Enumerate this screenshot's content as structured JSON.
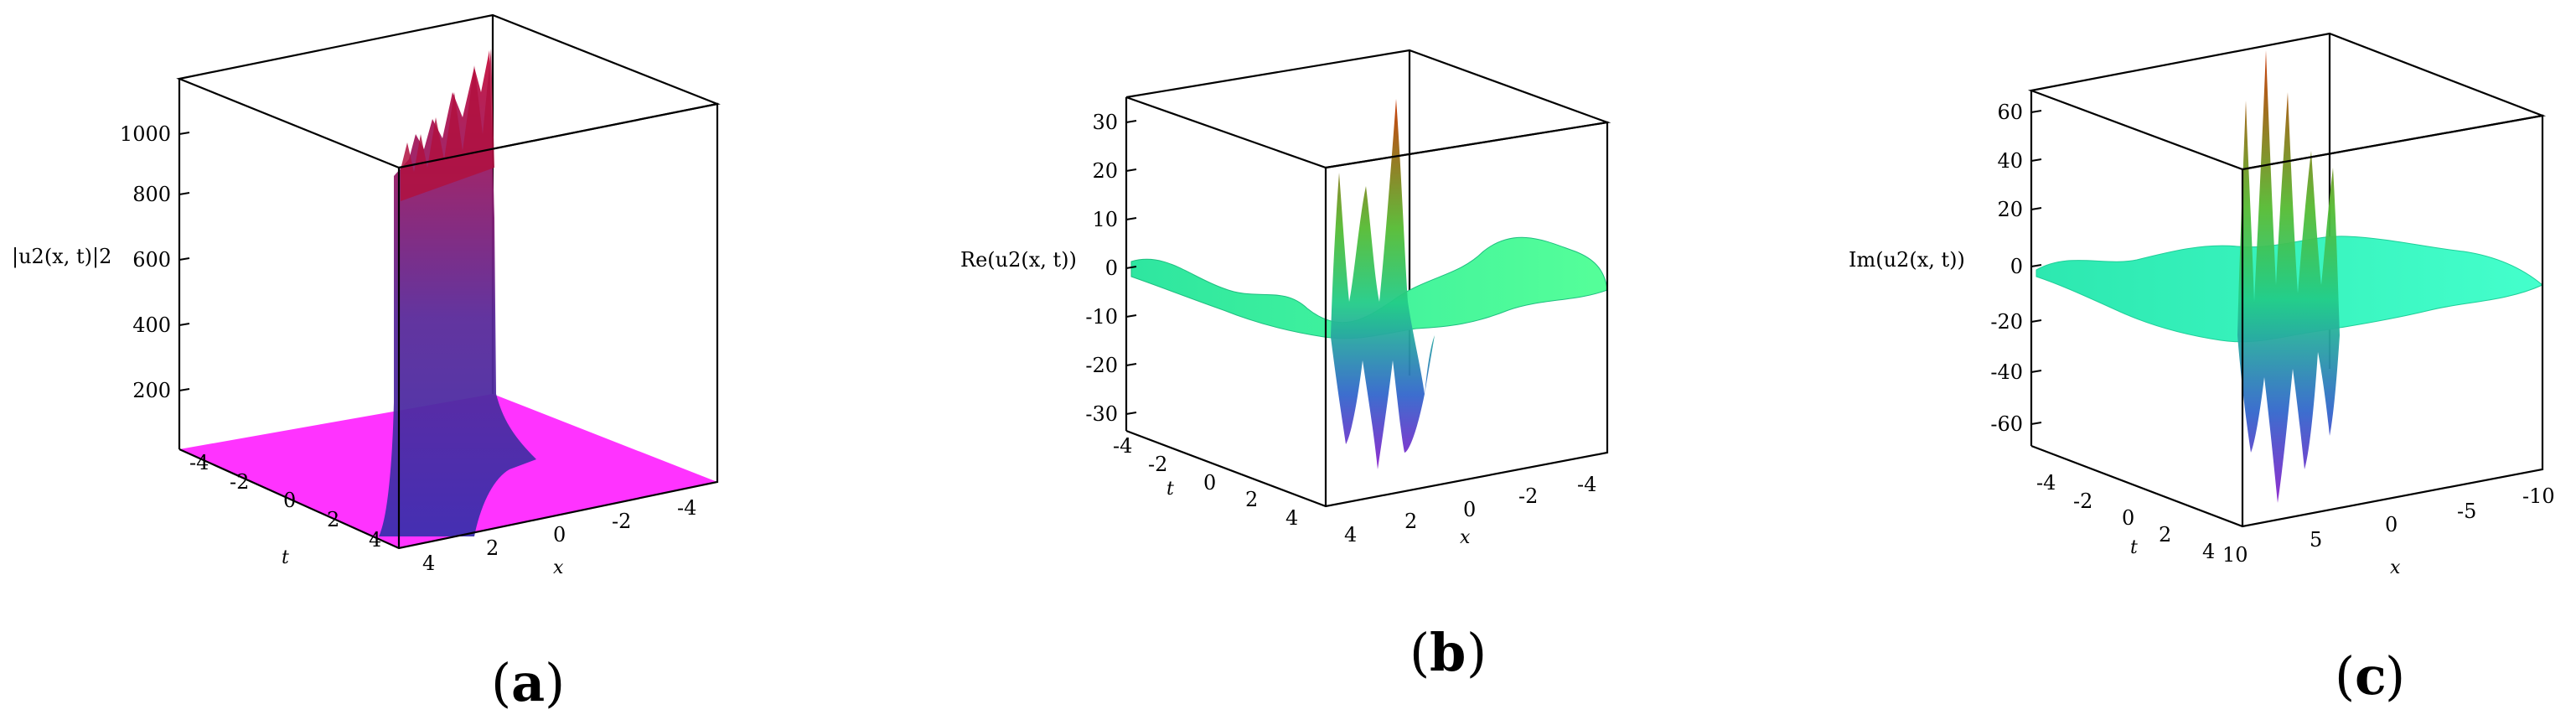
{
  "chart_data": [
    {
      "type": "surface3d",
      "panel_label": "a",
      "zlabel": "|u2(x, t)|2",
      "xlabel": "x",
      "ylabel": "t",
      "z_ticks": [
        "200",
        "400",
        "600",
        "800",
        "1000"
      ],
      "z_tick_values": [
        200,
        400,
        600,
        800,
        1000
      ],
      "zlim": [
        0,
        1150
      ],
      "t_ticks": [
        "-4",
        "-2",
        "0",
        "2",
        "4"
      ],
      "x_ticks": [
        "4",
        "2",
        "0",
        "-2",
        "-4"
      ],
      "colors": {
        "base": "#ff33ff",
        "low": "#3b3bbb",
        "high": "#c8103b"
      }
    },
    {
      "type": "surface3d",
      "panel_label": "b",
      "zlabel": "Re(u2(x, t))",
      "xlabel": "x",
      "ylabel": "t",
      "z_ticks": [
        "30",
        "20",
        "10",
        "0",
        "-10",
        "-20",
        "-30"
      ],
      "z_tick_values": [
        30,
        20,
        10,
        0,
        -10,
        -20,
        -30
      ],
      "zlim": [
        -35,
        35
      ],
      "t_ticks": [
        "-4",
        "-2",
        "0",
        "2",
        "4"
      ],
      "x_ticks": [
        "4",
        "2",
        "0",
        "-2",
        "-4"
      ],
      "colors": {
        "surface": "#33ff99",
        "peak": "#cc3300",
        "trough": "#7a22cc"
      }
    },
    {
      "type": "surface3d",
      "panel_label": "c",
      "zlabel": "Im(u2(x, t))",
      "xlabel": "x",
      "ylabel": "t",
      "z_ticks": [
        "60",
        "40",
        "20",
        "0",
        "-20",
        "-40",
        "-60"
      ],
      "z_tick_values": [
        60,
        40,
        20,
        0,
        -20,
        -40,
        -60
      ],
      "zlim": [
        -70,
        70
      ],
      "t_ticks": [
        "-4",
        "-2",
        "0",
        "2",
        "4"
      ],
      "x_ticks": [
        "10",
        "5",
        "0",
        "-5",
        "-10"
      ],
      "colors": {
        "surface": "#33ffaa",
        "peak": "#cc3300",
        "trough": "#7a22cc"
      }
    }
  ]
}
